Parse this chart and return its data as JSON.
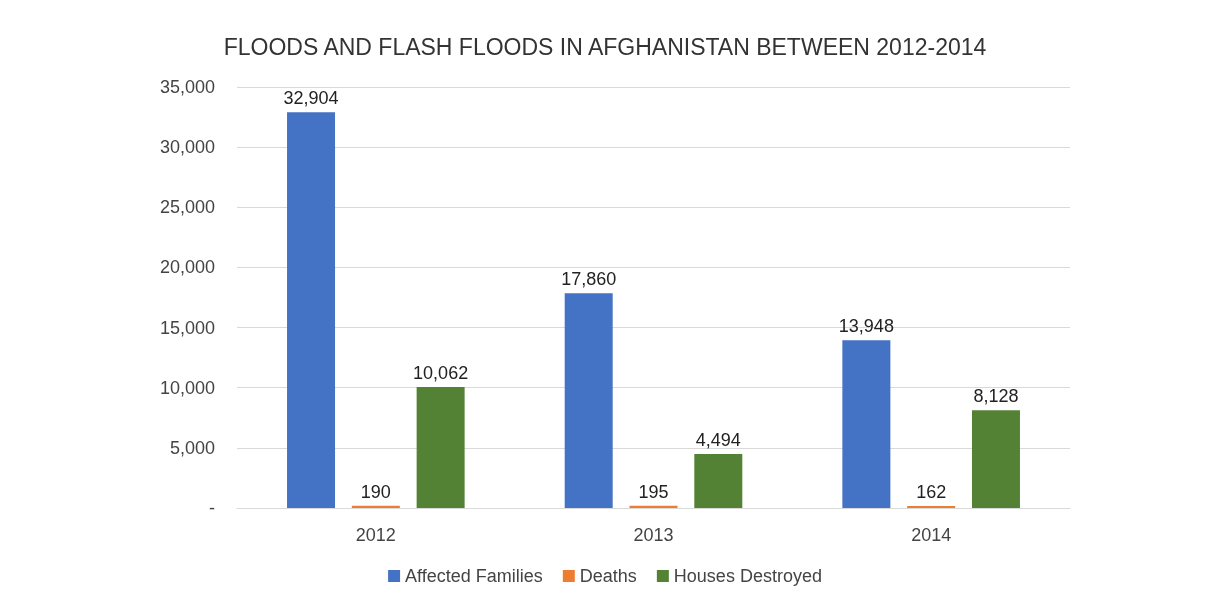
{
  "chart_data": {
    "type": "bar",
    "title": "FLOODS AND FLASH FLOODS IN AFGHANISTAN BETWEEN 2012-2014",
    "categories": [
      "2012",
      "2013",
      "2014"
    ],
    "series": [
      {
        "name": "Affected Families",
        "color": "#4472c4",
        "values": [
          32904,
          17860,
          13948
        ],
        "value_labels": [
          "32,904",
          "17,860",
          "13,948"
        ]
      },
      {
        "name": "Deaths",
        "color": "#ed7d31",
        "values": [
          190,
          195,
          162
        ],
        "value_labels": [
          "190",
          "195",
          "162"
        ]
      },
      {
        "name": "Houses Destroyed",
        "color": "#548235",
        "values": [
          10062,
          4494,
          8128
        ],
        "value_labels": [
          "10,062",
          "4,494",
          "8,128"
        ]
      }
    ],
    "ylim": [
      0,
      35000
    ],
    "yticks": [
      {
        "value": 0,
        "label": "-"
      },
      {
        "value": 5000,
        "label": "5,000"
      },
      {
        "value": 10000,
        "label": "10,000"
      },
      {
        "value": 15000,
        "label": "15,000"
      },
      {
        "value": 20000,
        "label": "20,000"
      },
      {
        "value": 25000,
        "label": "25,000"
      },
      {
        "value": 30000,
        "label": "30,000"
      },
      {
        "value": 35000,
        "label": "35,000"
      }
    ],
    "grid": "y",
    "legend": "bottom"
  }
}
